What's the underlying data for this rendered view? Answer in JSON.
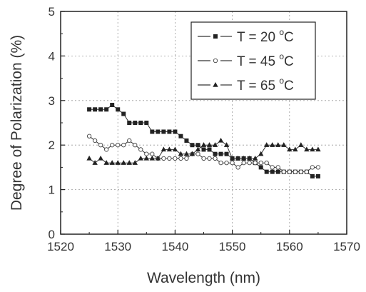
{
  "chart_data": {
    "type": "line",
    "xlabel": "Wavelength (nm)",
    "ylabel": "Degree of Polarization (%)",
    "xlim": [
      1520,
      1570
    ],
    "ylim": [
      0,
      5
    ],
    "xticks": [
      "1520",
      "1530",
      "1540",
      "1550",
      "1560",
      "1570"
    ],
    "yticks": [
      "0",
      "1",
      "2",
      "3",
      "4",
      "5"
    ],
    "grid": true,
    "legend_position": "top-right",
    "x": [
      1525,
      1526,
      1527,
      1528,
      1529,
      1530,
      1531,
      1532,
      1533,
      1534,
      1535,
      1536,
      1537,
      1538,
      1539,
      1540,
      1541,
      1542,
      1543,
      1544,
      1545,
      1546,
      1547,
      1548,
      1549,
      1550,
      1551,
      1552,
      1553,
      1554,
      1555,
      1556,
      1557,
      1558,
      1559,
      1560,
      1561,
      1562,
      1563,
      1564,
      1565
    ],
    "series": [
      {
        "name": "T = 20 °C",
        "label_main": "T = 20 ",
        "label_sup": "o",
        "label_unit": "C",
        "marker": "square",
        "marker_fill": "#222222",
        "values": [
          2.8,
          2.8,
          2.8,
          2.8,
          2.9,
          2.8,
          2.7,
          2.5,
          2.5,
          2.5,
          2.5,
          2.3,
          2.3,
          2.3,
          2.3,
          2.3,
          2.2,
          2.1,
          2.0,
          2.0,
          1.9,
          1.9,
          1.8,
          1.8,
          1.8,
          1.7,
          1.7,
          1.7,
          1.7,
          1.6,
          1.5,
          1.4,
          1.4,
          1.4,
          1.4,
          1.4,
          1.4,
          1.4,
          1.4,
          1.3,
          1.3
        ]
      },
      {
        "name": "T = 45 °C",
        "label_main": "T = 45 ",
        "label_sup": "o",
        "label_unit": "C",
        "marker": "circle",
        "marker_fill": "#ffffff",
        "values": [
          2.2,
          2.1,
          2.0,
          1.9,
          2.0,
          2.0,
          2.0,
          2.1,
          2.0,
          1.9,
          1.8,
          1.8,
          1.7,
          1.7,
          1.7,
          1.7,
          1.7,
          1.7,
          1.8,
          1.8,
          1.7,
          1.7,
          1.7,
          1.6,
          1.6,
          1.6,
          1.5,
          1.6,
          1.6,
          1.6,
          1.6,
          1.6,
          1.5,
          1.5,
          1.4,
          1.4,
          1.4,
          1.4,
          1.4,
          1.5,
          1.5
        ]
      },
      {
        "name": "T = 65 °C",
        "label_main": "T = 65 ",
        "label_sup": "o",
        "label_unit": "C",
        "marker": "triangle",
        "marker_fill": "#222222",
        "values": [
          1.7,
          1.6,
          1.7,
          1.6,
          1.6,
          1.6,
          1.6,
          1.6,
          1.6,
          1.7,
          1.7,
          1.7,
          1.7,
          1.9,
          1.9,
          1.9,
          1.8,
          1.8,
          1.8,
          1.9,
          2.0,
          2.0,
          2.0,
          2.1,
          2.0,
          1.7,
          1.7,
          1.7,
          1.7,
          1.7,
          1.8,
          2.0,
          2.0,
          2.0,
          2.0,
          1.9,
          1.9,
          2.0,
          1.9,
          1.9,
          1.9
        ]
      }
    ]
  }
}
